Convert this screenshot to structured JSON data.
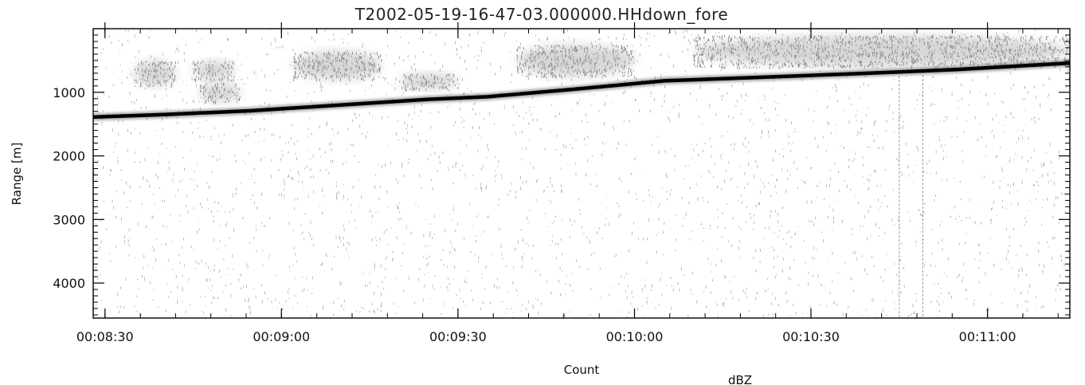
{
  "chart_data": {
    "type": "heatmap",
    "title": "T2002-05-19-16-47-03.000000.HHdown_fore",
    "ylabel": "Range [m]",
    "xlabel": "Count",
    "colorbar_label": "dBZ",
    "x_tick_labels": [
      "00:08:30",
      "00:09:00",
      "00:09:30",
      "00:10:00",
      "00:10:30",
      "00:11:00"
    ],
    "x_tick_seconds": [
      510,
      540,
      570,
      600,
      630,
      660
    ],
    "xlim_seconds": [
      508,
      674
    ],
    "y_ticks": [
      1000,
      2000,
      3000,
      4000
    ],
    "ylim": [
      0,
      4550
    ],
    "y_range_top": 0,
    "y_range_bottom": 4550,
    "y_inverted": true,
    "surface_line": {
      "name": "",
      "x_seconds": [
        508,
        520,
        535,
        550,
        565,
        575,
        590,
        605,
        620,
        640,
        655,
        674
      ],
      "range_m": [
        1390,
        1350,
        1290,
        1200,
        1110,
        1070,
        950,
        820,
        770,
        700,
        640,
        540
      ]
    },
    "echo_patches": [
      {
        "x_seconds": [
          515,
          522
        ],
        "range_m": [
          500,
          900
        ]
      },
      {
        "x_seconds": [
          525,
          532
        ],
        "range_m": [
          500,
          800
        ]
      },
      {
        "x_seconds": [
          526,
          533
        ],
        "range_m": [
          850,
          1150
        ]
      },
      {
        "x_seconds": [
          542,
          557
        ],
        "range_m": [
          350,
          800
        ]
      },
      {
        "x_seconds": [
          560,
          570
        ],
        "range_m": [
          700,
          950
        ]
      },
      {
        "x_seconds": [
          580,
          600
        ],
        "range_m": [
          250,
          750
        ]
      },
      {
        "x_seconds": [
          610,
          674
        ],
        "range_m": [
          100,
          600
        ]
      }
    ],
    "vertical_artifacts_seconds": [
      645,
      649
    ],
    "grid": false,
    "colors": {
      "line": "#000000",
      "echo": "#a8a8a8",
      "noise": "#9a9a9a",
      "frame": "#000000"
    }
  }
}
